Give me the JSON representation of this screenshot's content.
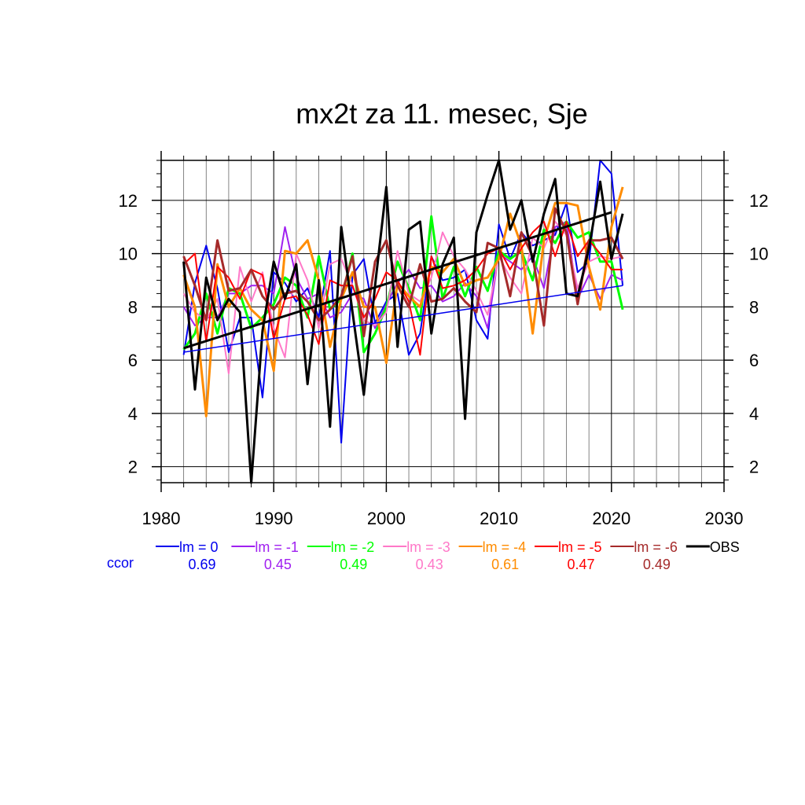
{
  "chart_data": {
    "type": "line",
    "title": "mx2t za 11. mesec, Sje",
    "xlim": [
      1980,
      2030
    ],
    "ylim": [
      1.4,
      13.5
    ],
    "x_ticks": [
      1980,
      1990,
      2000,
      2010,
      2020,
      2030
    ],
    "y_ticks": [
      2,
      4,
      6,
      8,
      10,
      12
    ],
    "grid": true,
    "legend_position": "bottom",
    "ccor_label": "ccor",
    "x": [
      1982,
      1983,
      1984,
      1985,
      1986,
      1987,
      1988,
      1989,
      1990,
      1991,
      1992,
      1993,
      1994,
      1995,
      1996,
      1997,
      1998,
      1999,
      2000,
      2001,
      2002,
      2003,
      2004,
      2005,
      2006,
      2007,
      2008,
      2009,
      2010,
      2011,
      2012,
      2013,
      2014,
      2015,
      2016,
      2017,
      2018,
      2019,
      2020,
      2021
    ],
    "series": [
      {
        "name": "lm = 0",
        "ccor": "0.69",
        "color": "#0000ee",
        "width": 2,
        "values": [
          6.2,
          8.9,
          10.3,
          8.7,
          6.3,
          7.6,
          7.6,
          4.6,
          9.3,
          8.9,
          8.2,
          8.7,
          7.6,
          10.1,
          2.9,
          9.2,
          9.8,
          7.4,
          8.2,
          8.5,
          6.2,
          7.0,
          9.9,
          9.0,
          9.1,
          9.4,
          7.5,
          6.8,
          11.1,
          9.8,
          10.8,
          10.3,
          10.5,
          10.7,
          11.9,
          9.3,
          9.7,
          13.5,
          13.0,
          8.8
        ]
      },
      {
        "name": "lm = -1",
        "ccor": "0.45",
        "color": "#a020f0",
        "width": 2,
        "values": [
          8.0,
          7.3,
          7.6,
          7.6,
          8.5,
          8.5,
          8.8,
          8.8,
          8.5,
          11.0,
          9.1,
          8.3,
          8.5,
          7.6,
          7.8,
          8.5,
          8.3,
          7.2,
          8.1,
          8.9,
          9.4,
          8.7,
          8.8,
          8.2,
          8.4,
          8.9,
          8.4,
          7.2,
          10.0,
          9.7,
          9.4,
          9.9,
          8.7,
          11.0,
          11.2,
          8.3,
          9.2,
          8.3,
          9.2,
          9.0
        ]
      },
      {
        "name": "lm = -2",
        "ccor": "0.49",
        "color": "#00ff00",
        "width": 3,
        "values": [
          6.4,
          7.0,
          8.5,
          7.0,
          8.7,
          8.5,
          7.2,
          7.6,
          8.1,
          9.1,
          8.8,
          7.6,
          9.9,
          7.9,
          8.3,
          10.0,
          6.3,
          7.0,
          8.0,
          9.7,
          8.7,
          7.5,
          11.4,
          8.3,
          9.5,
          8.4,
          9.5,
          8.6,
          10.1,
          9.8,
          10.1,
          9.0,
          10.9,
          10.4,
          11.2,
          10.6,
          10.8,
          9.7,
          9.7,
          7.9
        ]
      },
      {
        "name": "lm = -3",
        "ccor": "0.43",
        "color": "#ff78c8",
        "width": 2,
        "values": [
          8.5,
          7.8,
          7.5,
          8.3,
          5.5,
          9.5,
          8.2,
          9.3,
          7.2,
          6.1,
          10.0,
          9.0,
          7.2,
          9.6,
          9.8,
          8.8,
          7.5,
          7.3,
          7.8,
          10.1,
          8.5,
          8.2,
          9.1,
          10.8,
          9.9,
          9.4,
          8.6,
          7.7,
          9.9,
          9.1,
          8.5,
          10.6,
          10.2,
          11.2,
          10.7,
          8.7,
          9.7,
          9.9,
          9.8,
          9.9
        ]
      },
      {
        "name": "lm = -4",
        "ccor": "0.61",
        "color": "#ff8c00",
        "width": 3,
        "values": [
          9.2,
          8.0,
          3.9,
          9.6,
          8.0,
          8.7,
          7.9,
          7.5,
          5.6,
          10.1,
          10.0,
          10.5,
          9.0,
          6.5,
          8.3,
          9.3,
          8.0,
          8.0,
          5.9,
          8.9,
          8.4,
          8.0,
          9.5,
          9.3,
          9.8,
          8.8,
          9.0,
          9.1,
          9.8,
          11.5,
          10.3,
          7.0,
          10.5,
          11.9,
          11.9,
          11.8,
          9.5,
          7.9,
          11.0,
          12.5
        ]
      },
      {
        "name": "lm = -5",
        "ccor": "0.47",
        "color": "#ff0000",
        "width": 2,
        "values": [
          9.6,
          10.0,
          6.7,
          9.5,
          9.1,
          8.3,
          9.4,
          9.2,
          6.8,
          8.3,
          8.4,
          7.7,
          6.6,
          9.0,
          8.8,
          8.8,
          7.6,
          8.3,
          9.3,
          9.0,
          8.2,
          6.2,
          9.9,
          8.7,
          8.8,
          9.0,
          9.4,
          10.0,
          10.2,
          9.4,
          10.2,
          10.8,
          11.2,
          9.9,
          11.2,
          9.9,
          10.5,
          10.0,
          9.4,
          9.4
        ]
      },
      {
        "name": "lm = -6",
        "ccor": "0.49",
        "color": "#a52a2a",
        "width": 3,
        "values": [
          9.9,
          8.8,
          7.5,
          10.5,
          8.6,
          8.7,
          9.4,
          8.4,
          7.9,
          8.5,
          8.6,
          8.2,
          7.5,
          7.9,
          8.4,
          9.9,
          6.9,
          9.7,
          10.5,
          8.8,
          8.0,
          9.6,
          8.2,
          8.3,
          8.7,
          8.2,
          7.8,
          10.4,
          10.2,
          8.4,
          10.8,
          9.9,
          7.3,
          11.7,
          10.8,
          8.1,
          10.5,
          10.5,
          10.6,
          9.8
        ]
      },
      {
        "name": "OBS",
        "ccor": "",
        "color": "#000000",
        "width": 3,
        "values": [
          9.7,
          4.9,
          9.1,
          7.5,
          8.3,
          7.8,
          1.4,
          7.1,
          9.7,
          8.3,
          9.6,
          5.1,
          9.0,
          3.5,
          11.0,
          7.8,
          4.7,
          8.8,
          12.5,
          6.5,
          10.9,
          11.2,
          7.0,
          9.6,
          10.6,
          3.8,
          10.8,
          12.2,
          13.5,
          10.9,
          12.0,
          9.7,
          11.5,
          12.8,
          8.5,
          8.4,
          10.2,
          12.7,
          9.8,
          11.5
        ]
      }
    ],
    "trend_lines": [
      {
        "series": "lm = 0",
        "color": "#0000ee",
        "width": 1.5,
        "x": [
          1982,
          2021
        ],
        "y": [
          6.3,
          8.8
        ]
      },
      {
        "series": "OBS",
        "color": "#000000",
        "width": 3,
        "x": [
          1982,
          2020
        ],
        "y": [
          6.45,
          11.55
        ]
      }
    ]
  }
}
